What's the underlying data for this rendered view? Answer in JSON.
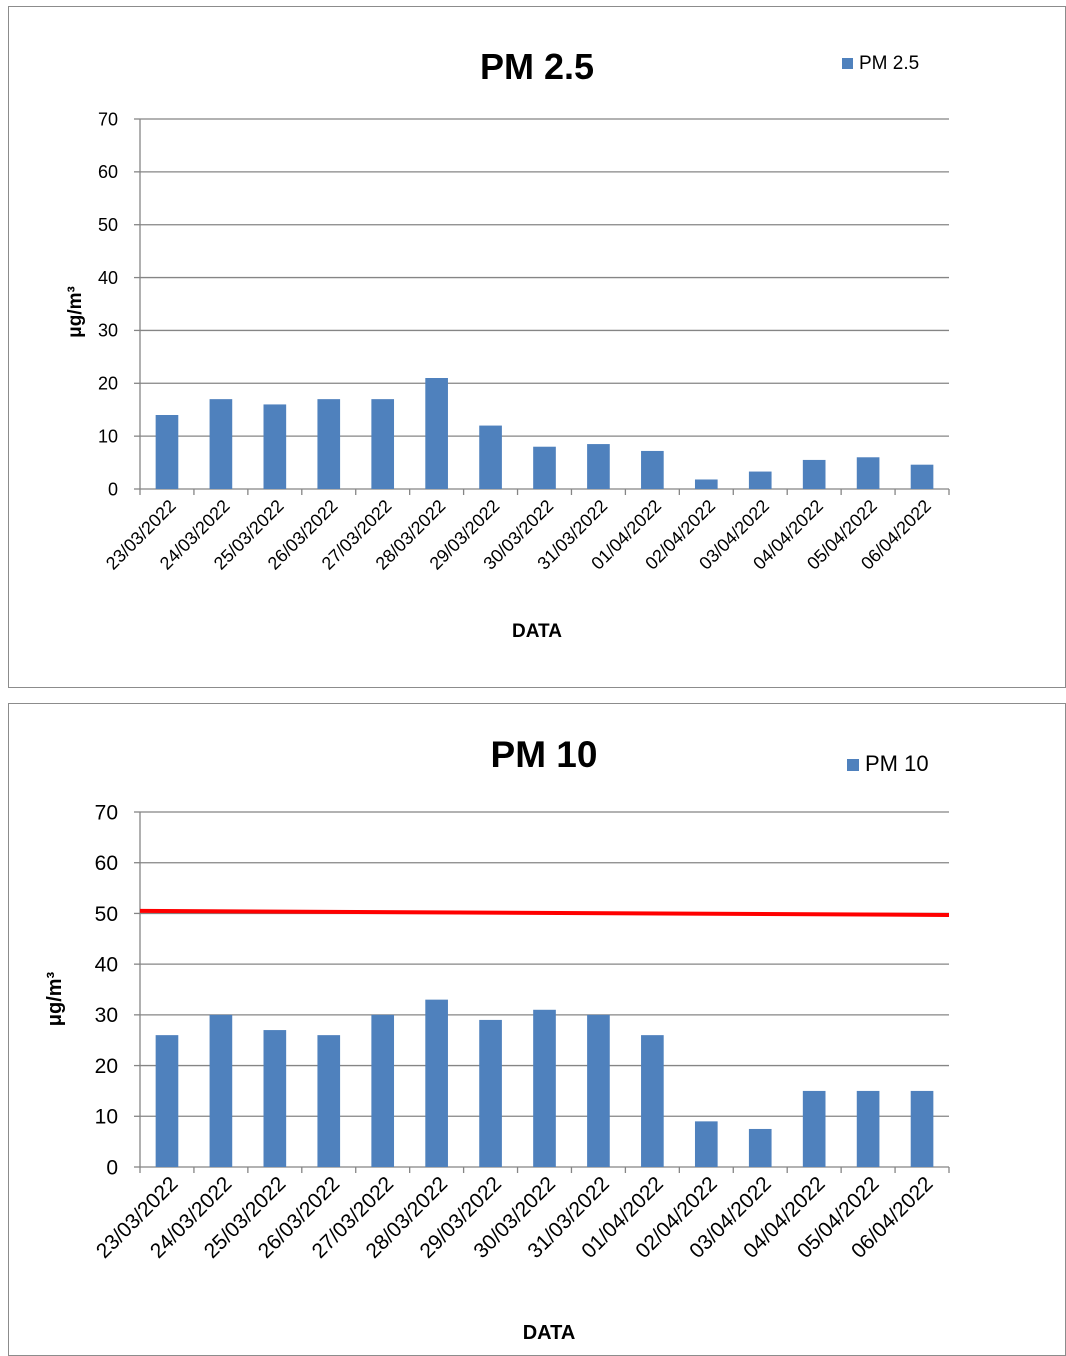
{
  "colors": {
    "bar": "#4f81bd",
    "grid": "#858585",
    "axis": "#858585",
    "limit_line": "#ff0000"
  },
  "chart_data": [
    {
      "type": "bar",
      "title": "PM 2.5",
      "legend": "PM 2.5",
      "legend_position": "top-right",
      "xlabel": "DATA",
      "ylabel": "μg/m³",
      "ylim": [
        0,
        70
      ],
      "yticks": [
        0,
        10,
        20,
        30,
        40,
        50,
        60,
        70
      ],
      "grid": true,
      "categories": [
        "23/03/2022",
        "24/03/2022",
        "25/03/2022",
        "26/03/2022",
        "27/03/2022",
        "28/03/2022",
        "29/03/2022",
        "30/03/2022",
        "31/03/2022",
        "01/04/2022",
        "02/04/2022",
        "03/04/2022",
        "04/04/2022",
        "05/04/2022",
        "06/04/2022"
      ],
      "series": [
        {
          "name": "PM 2.5",
          "values": [
            14,
            17,
            16,
            17,
            17,
            21,
            12,
            8,
            8.5,
            7.2,
            1.8,
            3.3,
            5.5,
            6,
            4.6
          ]
        }
      ]
    },
    {
      "type": "bar",
      "title": "PM 10",
      "legend": "PM 10",
      "legend_position": "top-right",
      "xlabel": "DATA",
      "ylabel": "μg/m³",
      "ylim": [
        0,
        70
      ],
      "yticks": [
        0,
        10,
        20,
        30,
        40,
        50,
        60,
        70
      ],
      "grid": true,
      "reference_line": {
        "from": 50.5,
        "to": 49.7
      },
      "categories": [
        "23/03/2022",
        "24/03/2022",
        "25/03/2022",
        "26/03/2022",
        "27/03/2022",
        "28/03/2022",
        "29/03/2022",
        "30/03/2022",
        "31/03/2022",
        "01/04/2022",
        "02/04/2022",
        "03/04/2022",
        "04/04/2022",
        "05/04/2022",
        "06/04/2022"
      ],
      "series": [
        {
          "name": "PM 10",
          "values": [
            26,
            30,
            27,
            26,
            30,
            33,
            29,
            31,
            30,
            26,
            9,
            7.5,
            15,
            15,
            15
          ]
        }
      ]
    }
  ]
}
